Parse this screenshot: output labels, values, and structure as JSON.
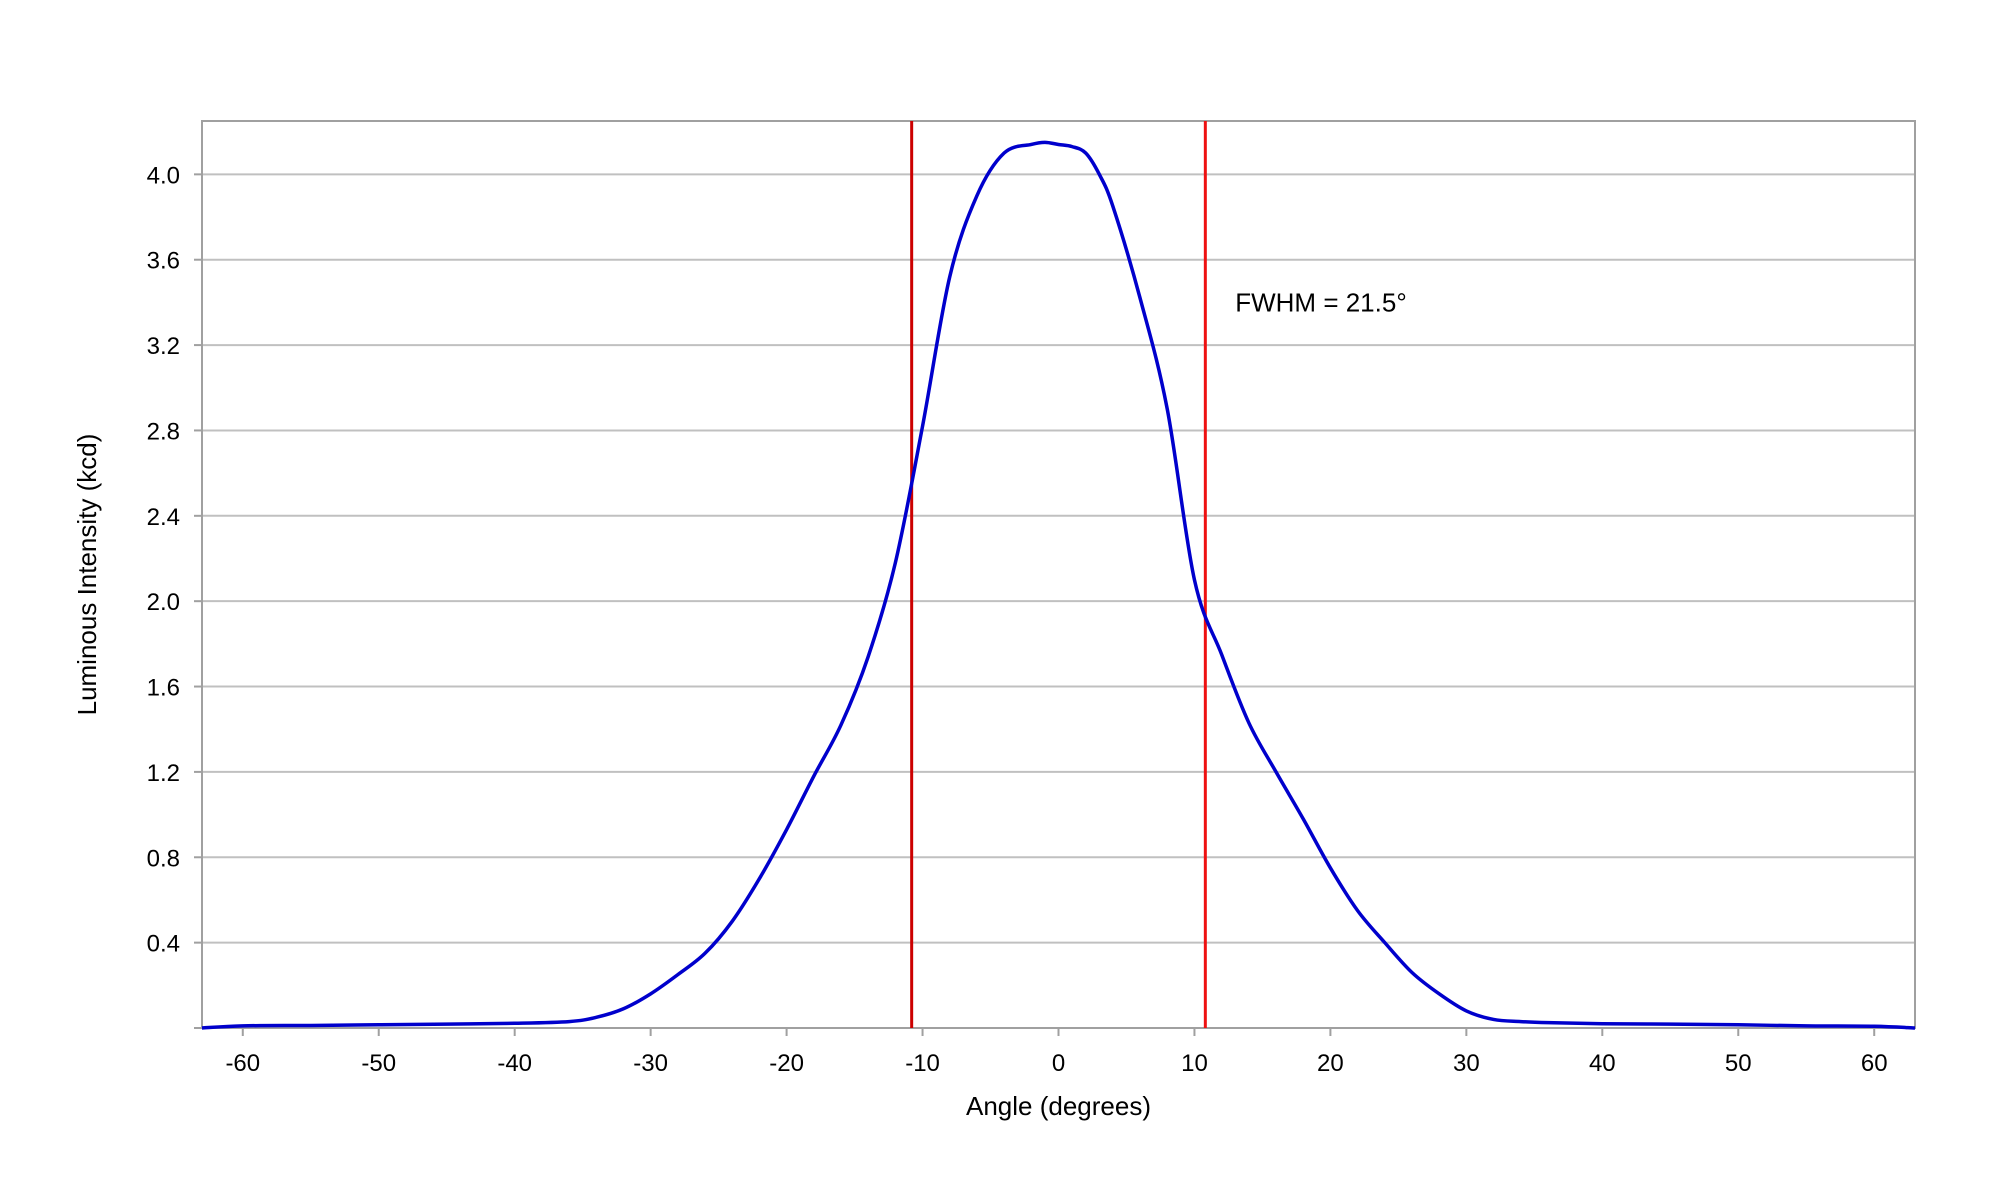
{
  "chart_data": {
    "type": "line",
    "title": "",
    "xlabel": "Angle (degrees)",
    "ylabel": "Luminous Intensity (kcd)",
    "xlim": [
      -63,
      63
    ],
    "ylim": [
      0,
      4.25
    ],
    "x_ticks": [
      -60,
      -50,
      -40,
      -30,
      -20,
      -10,
      0,
      10,
      20,
      30,
      40,
      50,
      60
    ],
    "x_tick_labels": [
      "-60",
      "-50",
      "-40",
      "-30",
      "-20",
      "-10",
      "0",
      "10",
      "20",
      "30",
      "40",
      "50",
      "60"
    ],
    "y_ticks": [
      0.4,
      0.8,
      1.2,
      1.6,
      2.0,
      2.4,
      2.8,
      3.2,
      3.6,
      4.0
    ],
    "y_tick_labels": [
      "0.4",
      "0.8",
      "1.2",
      "1.6",
      "2.0",
      "2.4",
      "2.8",
      "3.2",
      "3.6",
      "4.0"
    ],
    "grid": "horizontal",
    "legend": "none",
    "series": [
      {
        "color": "#0000cc",
        "x": [
          -63,
          -60,
          -55,
          -50,
          -45,
          -40,
          -36,
          -34,
          -32,
          -30,
          -28,
          -26,
          -24,
          -22,
          -20,
          -18,
          -16,
          -14,
          -12,
          -10,
          -8,
          -6,
          -4,
          -2,
          -1,
          0,
          1,
          2,
          3,
          4,
          6,
          8,
          10,
          12,
          14,
          16,
          18,
          20,
          22,
          24,
          26,
          28,
          30,
          32,
          34,
          36,
          40,
          45,
          50,
          55,
          60,
          63
        ],
        "y": [
          0.0,
          0.01,
          0.012,
          0.015,
          0.018,
          0.022,
          0.03,
          0.05,
          0.09,
          0.16,
          0.25,
          0.35,
          0.5,
          0.7,
          0.93,
          1.18,
          1.42,
          1.74,
          2.18,
          2.82,
          3.52,
          3.9,
          4.1,
          4.14,
          4.15,
          4.14,
          4.13,
          4.1,
          4.0,
          3.85,
          3.42,
          2.9,
          2.1,
          1.75,
          1.43,
          1.2,
          0.98,
          0.75,
          0.55,
          0.4,
          0.26,
          0.16,
          0.08,
          0.04,
          0.03,
          0.025,
          0.02,
          0.018,
          0.015,
          0.01,
          0.008,
          0.0
        ]
      }
    ],
    "vlines": [
      {
        "x": -10.8,
        "color": "#cc0000"
      },
      {
        "x": 10.8,
        "color": "#ee1111"
      }
    ],
    "annotations": [
      {
        "text": "FWHM = 21.5°",
        "x": 13,
        "y": 3.4
      }
    ],
    "colors": {
      "grid": "#c0c0c0",
      "frame": "#a0a0a0"
    }
  }
}
